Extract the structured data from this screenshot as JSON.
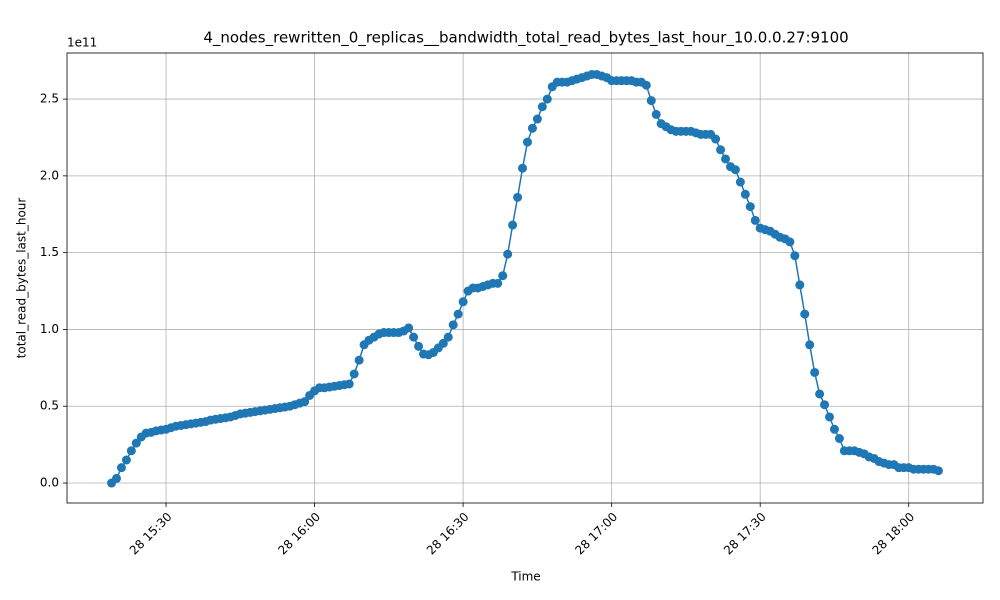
{
  "chart_data": {
    "type": "line",
    "title": "4_nodes_rewritten_0_replicas__bandwidth_total_read_bytes_last_hour_10.0.0.27:9100",
    "xlabel": "Time",
    "ylabel": "total_read_bytes_last_hour",
    "y_offset_label": "1e11",
    "color": "#1f77b4",
    "grid": true,
    "markers": true,
    "x": [
      "28 15:19",
      "28 15:20",
      "28 15:21",
      "28 15:22",
      "28 15:23",
      "28 15:24",
      "28 15:25",
      "28 15:26",
      "28 15:27",
      "28 15:28",
      "28 15:29",
      "28 15:30",
      "28 15:31",
      "28 15:32",
      "28 15:33",
      "28 15:34",
      "28 15:35",
      "28 15:36",
      "28 15:37",
      "28 15:38",
      "28 15:39",
      "28 15:40",
      "28 15:41",
      "28 15:42",
      "28 15:43",
      "28 15:44",
      "28 15:45",
      "28 15:46",
      "28 15:47",
      "28 15:48",
      "28 15:49",
      "28 15:50",
      "28 15:51",
      "28 15:52",
      "28 15:53",
      "28 15:54",
      "28 15:55",
      "28 15:56",
      "28 15:57",
      "28 15:58",
      "28 15:59",
      "28 16:00",
      "28 16:01",
      "28 16:02",
      "28 16:03",
      "28 16:04",
      "28 16:05",
      "28 16:06",
      "28 16:07",
      "28 16:08",
      "28 16:09",
      "28 16:10",
      "28 16:11",
      "28 16:12",
      "28 16:13",
      "28 16:14",
      "28 16:15",
      "28 16:16",
      "28 16:17",
      "28 16:18",
      "28 16:19",
      "28 16:20",
      "28 16:21",
      "28 16:22",
      "28 16:23",
      "28 16:24",
      "28 16:25",
      "28 16:26",
      "28 16:27",
      "28 16:28",
      "28 16:29",
      "28 16:30",
      "28 16:31",
      "28 16:32",
      "28 16:33",
      "28 16:34",
      "28 16:35",
      "28 16:36",
      "28 16:37",
      "28 16:38",
      "28 16:39",
      "28 16:40",
      "28 16:41",
      "28 16:42",
      "28 16:43",
      "28 16:44",
      "28 16:45",
      "28 16:46",
      "28 16:47",
      "28 16:48",
      "28 16:49",
      "28 16:50",
      "28 16:51",
      "28 16:52",
      "28 16:53",
      "28 16:54",
      "28 16:55",
      "28 16:56",
      "28 16:57",
      "28 16:58",
      "28 16:59",
      "28 17:00",
      "28 17:01",
      "28 17:02",
      "28 17:03",
      "28 17:04",
      "28 17:05",
      "28 17:06",
      "28 17:07",
      "28 17:08",
      "28 17:09",
      "28 17:10",
      "28 17:11",
      "28 17:12",
      "28 17:13",
      "28 17:14",
      "28 17:15",
      "28 17:16",
      "28 17:17",
      "28 17:18",
      "28 17:19",
      "28 17:20",
      "28 17:21",
      "28 17:22",
      "28 17:23",
      "28 17:24",
      "28 17:25",
      "28 17:26",
      "28 17:27",
      "28 17:28",
      "28 17:29",
      "28 17:30",
      "28 17:31",
      "28 17:32",
      "28 17:33",
      "28 17:34",
      "28 17:35",
      "28 17:36",
      "28 17:37",
      "28 17:38",
      "28 17:39",
      "28 17:40",
      "28 17:41",
      "28 17:42",
      "28 17:43",
      "28 17:44",
      "28 17:45",
      "28 17:46",
      "28 17:47",
      "28 17:48",
      "28 17:49",
      "28 17:50",
      "28 17:51",
      "28 17:52",
      "28 17:53",
      "28 17:54",
      "28 17:55",
      "28 17:56",
      "28 17:57",
      "28 17:58",
      "28 17:59",
      "28 18:00",
      "28 18:01",
      "28 18:02",
      "28 18:03",
      "28 18:04",
      "28 18:05",
      "28 18:06"
    ],
    "values": [
      0,
      0.03,
      0.1,
      0.15,
      0.21,
      0.26,
      0.3,
      0.325,
      0.33,
      0.34,
      0.345,
      0.35,
      0.36,
      0.37,
      0.375,
      0.38,
      0.385,
      0.39,
      0.395,
      0.4,
      0.41,
      0.415,
      0.42,
      0.425,
      0.43,
      0.44,
      0.45,
      0.455,
      0.46,
      0.465,
      0.47,
      0.475,
      0.48,
      0.485,
      0.49,
      0.495,
      0.5,
      0.51,
      0.52,
      0.53,
      0.57,
      0.6,
      0.62,
      0.62,
      0.625,
      0.63,
      0.635,
      0.64,
      0.645,
      0.71,
      0.8,
      0.9,
      0.93,
      0.95,
      0.97,
      0.98,
      0.98,
      0.98,
      0.98,
      0.99,
      1.01,
      0.95,
      0.89,
      0.84,
      0.835,
      0.85,
      0.88,
      0.91,
      0.95,
      1.03,
      1.1,
      1.18,
      1.25,
      1.27,
      1.27,
      1.28,
      1.29,
      1.3,
      1.3,
      1.35,
      1.49,
      1.68,
      1.86,
      2.05,
      2.22,
      2.31,
      2.37,
      2.45,
      2.5,
      2.58,
      2.61,
      2.61,
      2.61,
      2.62,
      2.63,
      2.64,
      2.65,
      2.66,
      2.66,
      2.65,
      2.64,
      2.62,
      2.62,
      2.62,
      2.62,
      2.62,
      2.61,
      2.61,
      2.59,
      2.49,
      2.4,
      2.34,
      2.32,
      2.3,
      2.29,
      2.29,
      2.29,
      2.29,
      2.28,
      2.27,
      2.27,
      2.27,
      2.24,
      2.17,
      2.11,
      2.06,
      2.04,
      1.96,
      1.88,
      1.8,
      1.71,
      1.66,
      1.65,
      1.64,
      1.62,
      1.6,
      1.59,
      1.57,
      1.48,
      1.29,
      1.1,
      0.9,
      0.72,
      0.58,
      0.51,
      0.43,
      0.35,
      0.29,
      0.21,
      0.21,
      0.21,
      0.2,
      0.19,
      0.17,
      0.16,
      0.14,
      0.13,
      0.12,
      0.12,
      0.1,
      0.1,
      0.1,
      0.09,
      0.09,
      0.09,
      0.09,
      0.09,
      0.08
    ],
    "xlim": [
      "28 15:10",
      "28 18:15"
    ],
    "xticks": [
      "28 15:30",
      "28 16:00",
      "28 16:30",
      "28 17:00",
      "28 17:30",
      "28 18:00"
    ],
    "ylim": [
      -0.13,
      2.8
    ],
    "yticks": [
      {
        "value": 0,
        "label": "0.0"
      },
      0.5,
      {
        "value": 1,
        "label": "1.0"
      },
      1.5,
      {
        "value": 2,
        "label": "2.0"
      },
      2.5
    ]
  }
}
